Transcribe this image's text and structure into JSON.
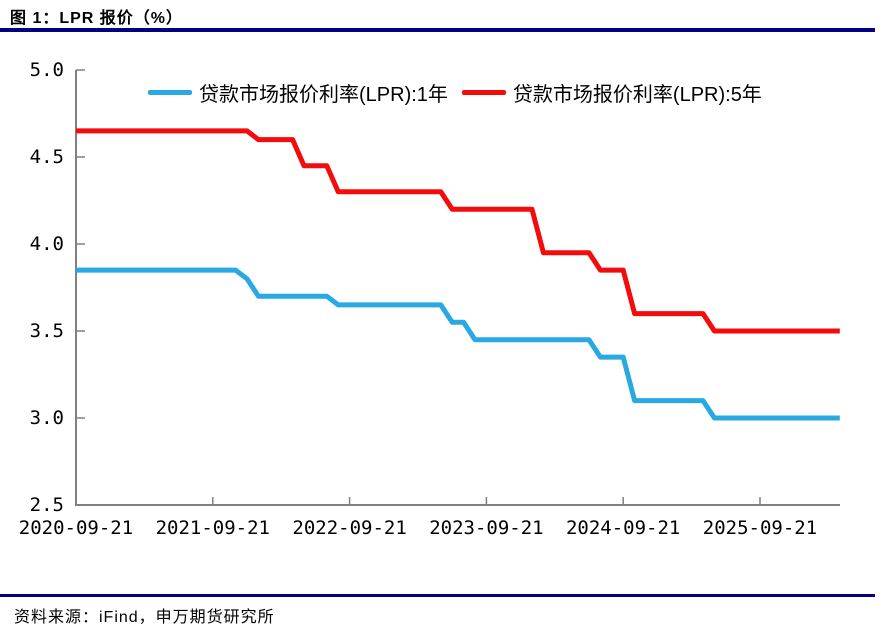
{
  "header": {
    "title": "图 1：LPR 报价（%）"
  },
  "footer": {
    "source": "资料来源：iFind，申万期货研究所"
  },
  "colors": {
    "accent_rule": "#000080",
    "axis": "#808080",
    "lpr_1y": "#29A9E1",
    "lpr_5y": "#F40B0B"
  },
  "chart_data": {
    "type": "line",
    "subtype": "monthly-step",
    "title": "图 1：LPR 报价（%）",
    "xlabel": "",
    "ylabel": "",
    "grid": false,
    "legend_position": "top",
    "ylim": [
      2.5,
      5.0
    ],
    "y_tick_labels": [
      "5.0",
      "4.5",
      "4.0",
      "3.5",
      "3.0",
      "2.5"
    ],
    "y_tick_values": [
      5.0,
      4.5,
      4.0,
      3.5,
      3.0,
      2.5
    ],
    "x_tick_labels": [
      "2020-09-21",
      "2021-09-21",
      "2022-09-21",
      "2023-09-21",
      "2024-09-21",
      "2025-09-21"
    ],
    "x_start_month": "2020-09",
    "x_end_month": "2026-04",
    "series": [
      {
        "name": "贷款市场报价利率(LPR):1年",
        "color": "#29A9E1",
        "changes": [
          [
            "2020-09",
            3.85
          ],
          [
            "2021-12",
            3.8
          ],
          [
            "2022-01",
            3.7
          ],
          [
            "2022-08",
            3.65
          ],
          [
            "2023-06",
            3.55
          ],
          [
            "2023-08",
            3.45
          ],
          [
            "2024-07",
            3.35
          ],
          [
            "2024-10",
            3.1
          ],
          [
            "2025-05",
            3.0
          ]
        ]
      },
      {
        "name": "贷款市场报价利率(LPR):5年",
        "color": "#F40B0B",
        "changes": [
          [
            "2020-09",
            4.65
          ],
          [
            "2022-01",
            4.6
          ],
          [
            "2022-05",
            4.45
          ],
          [
            "2022-08",
            4.3
          ],
          [
            "2023-06",
            4.2
          ],
          [
            "2024-02",
            3.95
          ],
          [
            "2024-07",
            3.85
          ],
          [
            "2024-10",
            3.6
          ],
          [
            "2025-05",
            3.5
          ]
        ]
      }
    ]
  }
}
